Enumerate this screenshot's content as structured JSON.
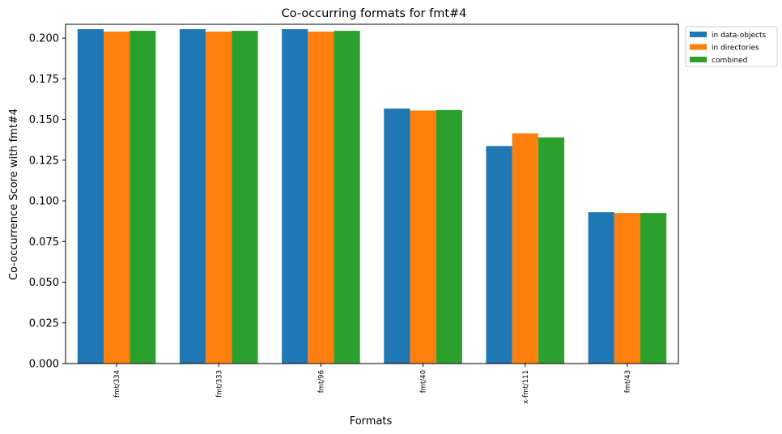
{
  "chart_data": {
    "type": "bar",
    "title": "Co-occurring formats for fmt#4",
    "xlabel": "Formats",
    "ylabel": "Co-occurrence Score with fmt#4",
    "categories": [
      "fmt/334",
      "fmt/333",
      "fmt/96",
      "fmt/40",
      "x-fmt/111",
      "fmt/43"
    ],
    "series": [
      {
        "name": "in data-objects",
        "color": "#1f77b4",
        "values": [
          0.2055,
          0.2055,
          0.2055,
          0.1567,
          0.1337,
          0.093
        ]
      },
      {
        "name": "in directories",
        "color": "#ff7f0e",
        "values": [
          0.204,
          0.204,
          0.204,
          0.1555,
          0.1415,
          0.0925
        ]
      },
      {
        "name": "combined",
        "color": "#2ca02c",
        "values": [
          0.2045,
          0.2045,
          0.2045,
          0.1558,
          0.139,
          0.0925
        ]
      }
    ],
    "yticks": [
      "0.000",
      "0.025",
      "0.050",
      "0.075",
      "0.100",
      "0.125",
      "0.150",
      "0.175",
      "0.200"
    ],
    "ylim": [
      0,
      0.2085
    ],
    "grid": false,
    "legend_position": "outside-top-right"
  }
}
